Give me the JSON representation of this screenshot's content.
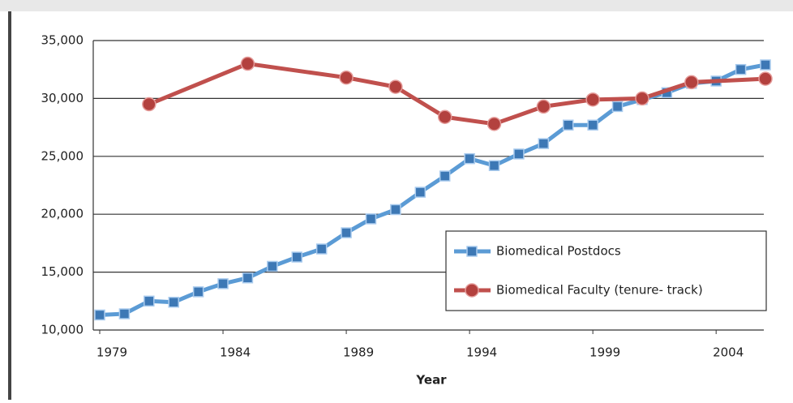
{
  "chart_data": {
    "type": "line",
    "x_label": "Year",
    "xlim": [
      1979,
      2006
    ],
    "xticks": [
      1979,
      1984,
      1989,
      1994,
      1999,
      2004
    ],
    "ylim": [
      10000,
      35000
    ],
    "yticks": [
      {
        "value": 10000,
        "label": "10,000"
      },
      {
        "value": 15000,
        "label": "15,000"
      },
      {
        "value": 20000,
        "label": "20,000"
      },
      {
        "value": 25000,
        "label": "25,000"
      },
      {
        "value": 30000,
        "label": "30,000"
      },
      {
        "value": 35000,
        "label": "35,000"
      }
    ],
    "grid": true,
    "legend": "lower right",
    "series": [
      {
        "name": "Biomedical Postdocs",
        "color": "#5b9bd5",
        "marker": "square",
        "x": [
          1979,
          1980,
          1981,
          1982,
          1983,
          1984,
          1985,
          1986,
          1987,
          1988,
          1989,
          1990,
          1991,
          1992,
          1993,
          1994,
          1995,
          1996,
          1997,
          1998,
          1999,
          2000,
          2001,
          2002,
          2003,
          2004,
          2005,
          2006
        ],
        "values": [
          11300,
          11400,
          12500,
          12400,
          13300,
          14000,
          14500,
          15500,
          16300,
          17000,
          18400,
          19600,
          20400,
          21900,
          23300,
          24800,
          24200,
          25200,
          26100,
          27700,
          27700,
          29300,
          29900,
          30500,
          31300,
          31500,
          32500,
          32900
        ]
      },
      {
        "name": "Biomedical Faculty (tenure- track)",
        "color": "#c0504d",
        "marker": "circle",
        "x": [
          1981,
          1985,
          1989,
          1991,
          1993,
          1995,
          1997,
          1999,
          2001,
          2003,
          2006
        ],
        "values": [
          29500,
          33000,
          31800,
          31000,
          28400,
          27800,
          29300,
          29900,
          30000,
          31400,
          31700
        ]
      }
    ]
  }
}
